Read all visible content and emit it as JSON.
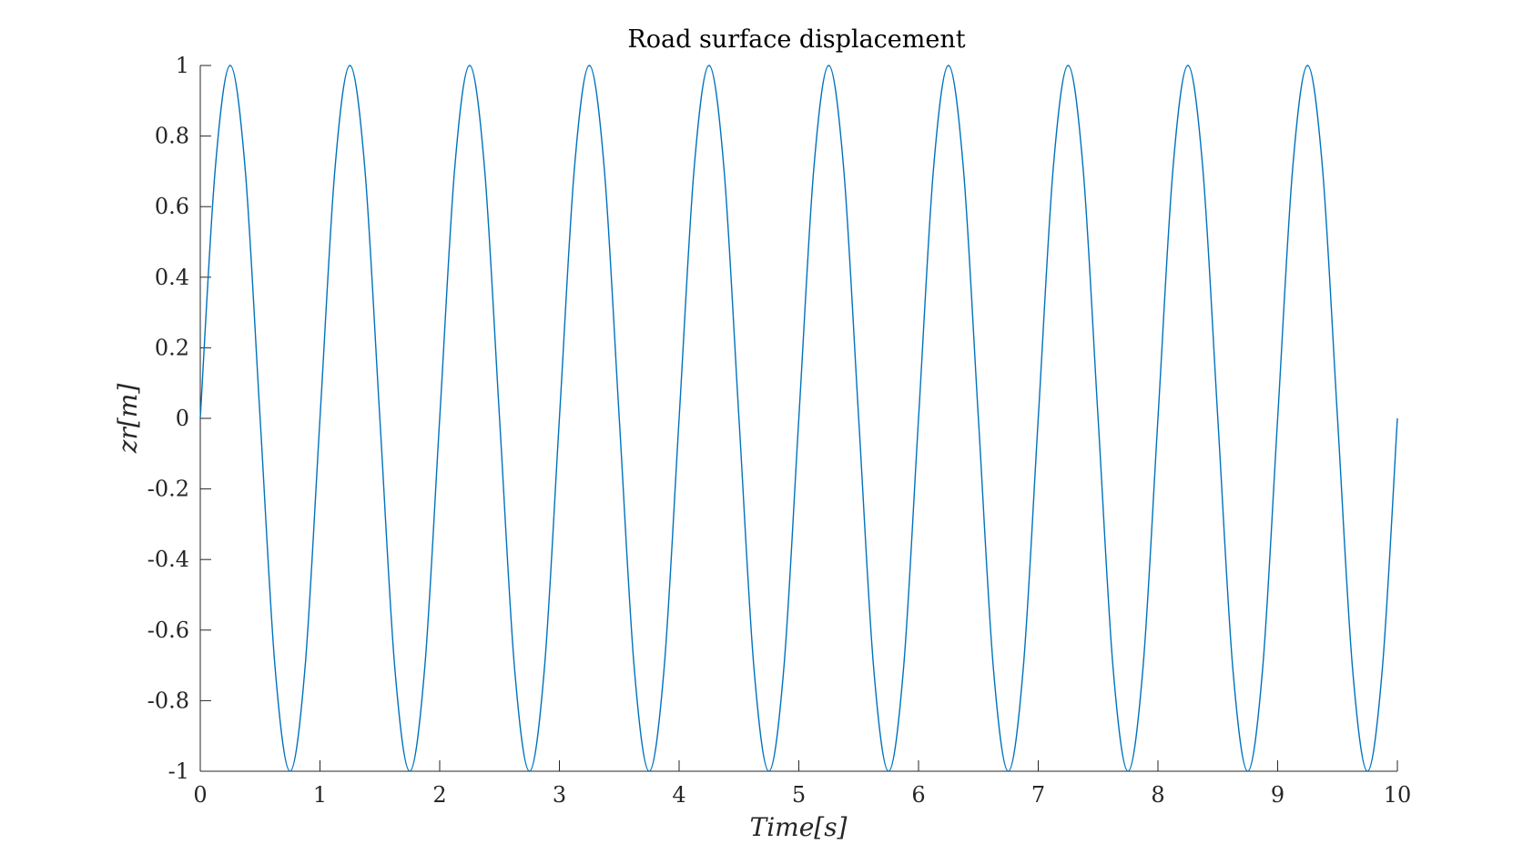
{
  "chart_data": {
    "type": "line",
    "title": "Road surface displacement",
    "xlabel": "Time[s]",
    "ylabel": "zr[m]",
    "xlim": [
      0,
      10
    ],
    "ylim": [
      -1,
      1
    ],
    "x_ticks": [
      "0",
      "1",
      "2",
      "3",
      "4",
      "5",
      "6",
      "7",
      "8",
      "9",
      "10"
    ],
    "y_ticks": [
      "1",
      "0.8",
      "0.6",
      "0.4",
      "0.2",
      "0",
      "-0.2",
      "-0.4",
      "-0.6",
      "-0.8",
      "-1"
    ],
    "grid": false,
    "series": [
      {
        "color": "#0072BD",
        "x": [
          0,
          0.125,
          0.25,
          0.375,
          0.5,
          0.625,
          0.75,
          0.875,
          1,
          1.125,
          1.25,
          1.375,
          1.5,
          1.625,
          1.75,
          1.875,
          2,
          2.125,
          2.25,
          2.375,
          2.5,
          2.625,
          2.75,
          2.875,
          3,
          3.125,
          3.25,
          3.375,
          3.5,
          3.625,
          3.75,
          3.875,
          4,
          4.125,
          4.25,
          4.375,
          4.5,
          4.625,
          4.75,
          4.875,
          5,
          5.125,
          5.25,
          5.375,
          5.5,
          5.625,
          5.75,
          5.875,
          6,
          6.125,
          6.25,
          6.375,
          6.5,
          6.625,
          6.75,
          6.875,
          7,
          7.125,
          7.25,
          7.375,
          7.5,
          7.625,
          7.75,
          7.875,
          8,
          8.125,
          8.25,
          8.375,
          8.5,
          8.625,
          8.75,
          8.875,
          9,
          9.125,
          9.25,
          9.375,
          9.5,
          9.625,
          9.75,
          9.875,
          10
        ],
        "y": [
          0,
          0.707,
          1,
          0.707,
          0,
          -0.707,
          -1,
          -0.707,
          0,
          0.707,
          1,
          0.707,
          0,
          -0.707,
          -1,
          -0.707,
          0,
          0.707,
          1,
          0.707,
          0,
          -0.707,
          -1,
          -0.707,
          0,
          0.707,
          1,
          0.707,
          0,
          -0.707,
          -1,
          -0.707,
          0,
          0.707,
          1,
          0.707,
          0,
          -0.707,
          -1,
          -0.707,
          0,
          0.707,
          1,
          0.707,
          0,
          -0.707,
          -1,
          -0.707,
          0,
          0.707,
          1,
          0.707,
          0,
          -0.707,
          -1,
          -0.707,
          0,
          0.707,
          1,
          0.707,
          0,
          -0.707,
          -1,
          -0.707,
          0,
          0.707,
          1,
          0.707,
          0,
          -0.707,
          -1,
          -0.707,
          0,
          0.707,
          1,
          0.707,
          0,
          -0.707,
          -1,
          -0.707,
          0
        ]
      }
    ]
  }
}
